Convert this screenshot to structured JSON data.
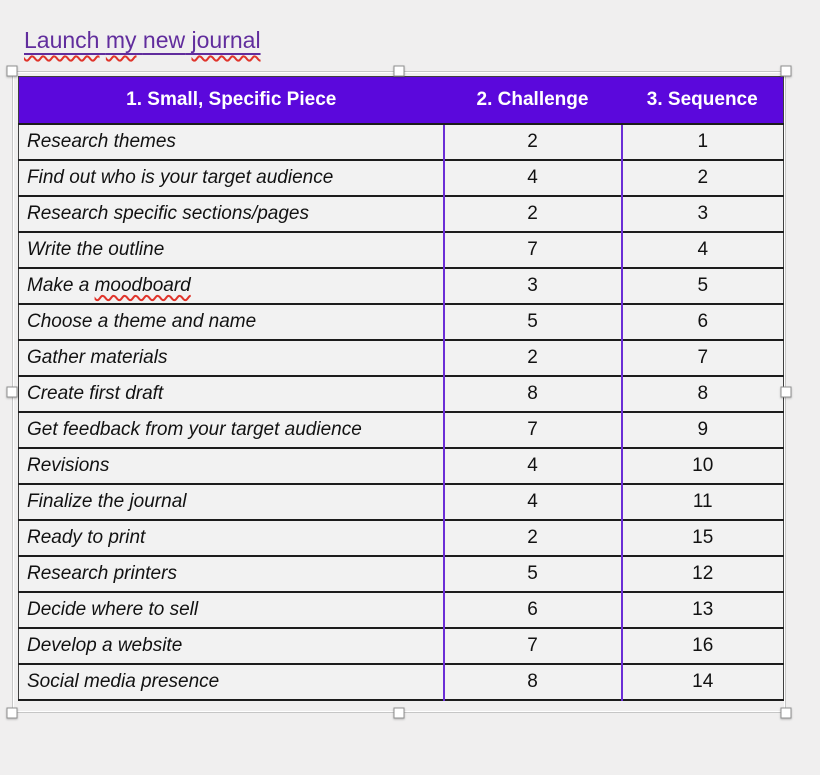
{
  "theme": {
    "page_bg": "#f0efef",
    "cell_bg": "#f2f2f2",
    "header_bg": "#5b08dc",
    "header_text": "#ffffff",
    "title_color": "#612d9d",
    "purple_divider": "#6b2ed6",
    "row_border": "#1c1c1c",
    "squiggle": "#e0342b"
  },
  "title": {
    "text": "Launch my new journal",
    "words": [
      {
        "text": "Launch",
        "misspelled": true
      },
      {
        "text": "my",
        "misspelled": true
      },
      {
        "text": "new",
        "misspelled": false
      },
      {
        "text": "journal",
        "misspelled": true
      }
    ]
  },
  "table": {
    "columns": [
      "1. Small, Specific Piece",
      "2. Challenge",
      "3. Sequence"
    ],
    "rows": [
      {
        "task": [
          {
            "text": "Research themes",
            "misspelled": false
          }
        ],
        "challenge": "2",
        "sequence": "1"
      },
      {
        "task": [
          {
            "text": "Find out who is your target audience",
            "misspelled": false
          }
        ],
        "challenge": "4",
        "sequence": "2"
      },
      {
        "task": [
          {
            "text": "Research specific sections/pages",
            "misspelled": false
          }
        ],
        "challenge": "2",
        "sequence": "3"
      },
      {
        "task": [
          {
            "text": "Write the outline",
            "misspelled": false
          }
        ],
        "challenge": "7",
        "sequence": "4"
      },
      {
        "task": [
          {
            "text": "Make a ",
            "misspelled": false
          },
          {
            "text": "moodboard",
            "misspelled": true
          }
        ],
        "challenge": "3",
        "sequence": "5"
      },
      {
        "task": [
          {
            "text": "Choose a theme and name",
            "misspelled": false
          }
        ],
        "challenge": "5",
        "sequence": "6"
      },
      {
        "task": [
          {
            "text": "Gather materials",
            "misspelled": false
          }
        ],
        "challenge": "2",
        "sequence": "7"
      },
      {
        "task": [
          {
            "text": "Create first draft",
            "misspelled": false
          }
        ],
        "challenge": "8",
        "sequence": "8"
      },
      {
        "task": [
          {
            "text": "Get feedback from your target audience",
            "misspelled": false
          }
        ],
        "challenge": "7",
        "sequence": "9"
      },
      {
        "task": [
          {
            "text": "Revisions",
            "misspelled": false
          }
        ],
        "challenge": "4",
        "sequence": "10"
      },
      {
        "task": [
          {
            "text": "Finalize the journal",
            "misspelled": false
          }
        ],
        "challenge": "4",
        "sequence": "11"
      },
      {
        "task": [
          {
            "text": "Ready to print",
            "misspelled": false
          }
        ],
        "challenge": "2",
        "sequence": "15"
      },
      {
        "task": [
          {
            "text": "Research printers",
            "misspelled": false
          }
        ],
        "challenge": "5",
        "sequence": "12"
      },
      {
        "task": [
          {
            "text": "Decide where to sell",
            "misspelled": false
          }
        ],
        "challenge": "6",
        "sequence": "13"
      },
      {
        "task": [
          {
            "text": "Develop a website",
            "misspelled": false
          }
        ],
        "challenge": "7",
        "sequence": "16"
      },
      {
        "task": [
          {
            "text": "Social media presence",
            "misspelled": false
          }
        ],
        "challenge": "8",
        "sequence": "14"
      }
    ]
  }
}
